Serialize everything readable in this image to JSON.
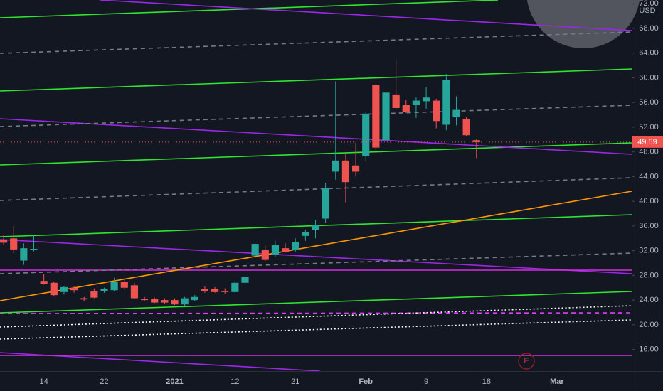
{
  "chart_data": {
    "type": "candlestick",
    "currency": "USD",
    "event_marker": "E",
    "last_price": 49.59,
    "up_color": "#26a69a",
    "down_color": "#ef5350",
    "categories": [
      null,
      null,
      null,
      null,
      "14",
      null,
      null,
      null,
      null,
      null,
      "22",
      null,
      null,
      null,
      null,
      null,
      null,
      "2021",
      null,
      null,
      null,
      null,
      null,
      "12",
      null,
      null,
      null,
      null,
      null,
      "21",
      null,
      null,
      null,
      null,
      null,
      null,
      "Feb",
      null,
      null,
      null,
      null,
      null,
      "9",
      null,
      null,
      null,
      null,
      null,
      "18",
      null,
      null,
      null,
      null,
      null,
      null,
      "Mar",
      null,
      null,
      null,
      null,
      null,
      null,
      null
    ],
    "open": [
      33.8,
      34.0,
      30.4,
      32.1,
      27.1,
      26.8,
      25.3,
      26.0,
      24.3,
      25.4,
      25.5,
      25.6,
      27.0,
      26.4,
      24.2,
      24.2,
      24.0,
      24.0,
      23.3,
      24.0,
      25.8,
      25.8,
      25.5,
      25.3,
      26.8,
      31.2,
      32.1,
      31.4,
      32.4,
      32.1,
      34.4,
      35.4,
      37.2,
      44.8,
      46.6,
      45.8,
      47.3,
      58.8,
      49.9,
      57.3,
      55.6,
      55.6,
      56.2,
      56.3,
      52.4,
      53.6,
      53.3,
      49.9,
      null,
      null,
      null,
      null,
      null,
      null,
      null,
      null,
      null,
      null,
      null,
      null,
      null,
      null,
      null
    ],
    "high": [
      34.5,
      36.0,
      33.2,
      34.6,
      28.2,
      27.0,
      26.2,
      26.3,
      24.5,
      25.9,
      26.0,
      27.6,
      27.5,
      26.8,
      24.5,
      24.4,
      24.3,
      24.3,
      24.5,
      24.8,
      26.2,
      26.1,
      25.9,
      27.2,
      28.0,
      33.4,
      32.8,
      33.6,
      33.2,
      34.0,
      35.4,
      37.0,
      43.0,
      59.4,
      47.8,
      49.5,
      54.5,
      59.0,
      60.0,
      63.0,
      56.4,
      56.8,
      58.5,
      56.6,
      60.6,
      57.0,
      53.6,
      50.0,
      null,
      null,
      null,
      null,
      null,
      null,
      null,
      null,
      null,
      null,
      null,
      null,
      null,
      null,
      null
    ],
    "low": [
      32.9,
      31.6,
      29.7,
      31.9,
      26.5,
      24.6,
      24.9,
      25.2,
      23.9,
      24.3,
      25.2,
      25.4,
      25.8,
      24.2,
      23.8,
      23.5,
      23.4,
      23.2,
      23.1,
      23.8,
      25.2,
      25.2,
      25.0,
      25.1,
      26.5,
      30.8,
      30.3,
      31.0,
      31.7,
      31.8,
      33.6,
      34.0,
      36.5,
      43.5,
      39.8,
      44.0,
      46.5,
      48.2,
      49.5,
      54.8,
      54.3,
      53.5,
      55.0,
      51.8,
      51.5,
      52.3,
      50.5,
      47.0,
      null,
      null,
      null,
      null,
      null,
      null,
      null,
      null,
      null,
      null,
      null,
      null,
      null,
      null,
      null
    ],
    "close": [
      33.3,
      32.2,
      32.4,
      32.3,
      26.6,
      24.8,
      26.1,
      25.6,
      24.1,
      24.4,
      25.8,
      27.0,
      26.0,
      24.3,
      24.0,
      23.6,
      23.6,
      23.3,
      24.3,
      24.5,
      25.4,
      25.3,
      25.3,
      26.8,
      27.7,
      33.1,
      30.5,
      32.9,
      31.8,
      33.4,
      35.0,
      36.2,
      42.1,
      46.6,
      43.1,
      44.8,
      54.2,
      48.7,
      57.6,
      55.1,
      54.5,
      56.3,
      56.8,
      53.0,
      59.6,
      54.8,
      50.7,
      49.59,
      null,
      null,
      null,
      null,
      null,
      null,
      null,
      null,
      null,
      null,
      null,
      null,
      null,
      null,
      null
    ],
    "ylim": [
      12.5,
      72.6
    ],
    "yticks": [
      {
        "value": 16,
        "label": "16.00"
      },
      {
        "value": 20,
        "label": "20.00"
      },
      {
        "value": 24,
        "label": "24.00"
      },
      {
        "value": 28,
        "label": "28.00"
      },
      {
        "value": 32,
        "label": "32.00"
      },
      {
        "value": 36,
        "label": "36.00"
      },
      {
        "value": 40,
        "label": "40.00"
      },
      {
        "value": 44,
        "label": "44.00"
      },
      {
        "value": 48,
        "label": "48.00"
      },
      {
        "value": 52,
        "label": "52.00"
      },
      {
        "value": 56,
        "label": "56.00"
      },
      {
        "value": 60,
        "label": "60.00"
      },
      {
        "value": 64,
        "label": "64.00"
      },
      {
        "value": 68,
        "label": "68.00"
      },
      {
        "value": 72,
        "label": "72.00"
      }
    ]
  }
}
